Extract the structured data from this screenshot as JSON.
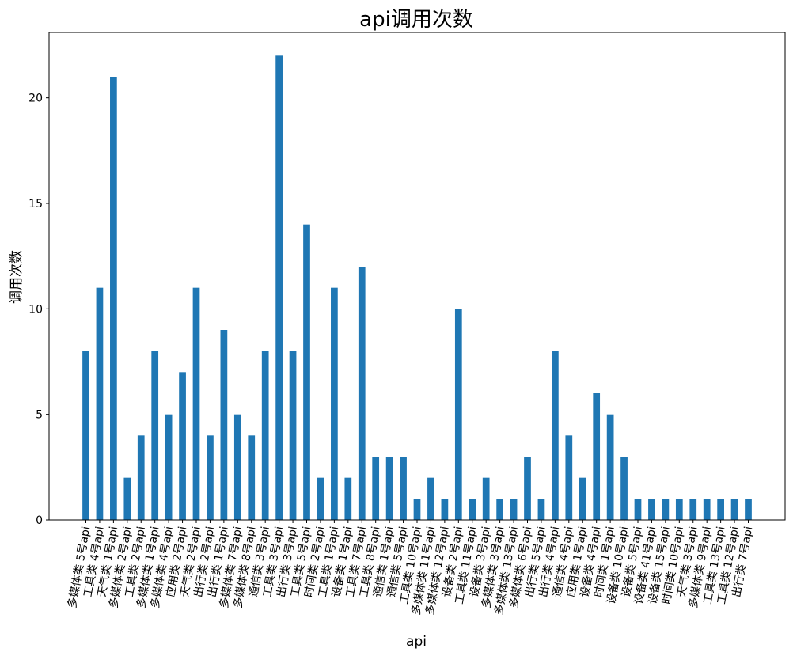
{
  "chart_data": {
    "type": "bar",
    "title": "api调用次数",
    "xlabel": "api",
    "ylabel": "调用次数",
    "ylim": [
      0,
      23.1
    ],
    "yticks": [
      0,
      5,
      10,
      15,
      20
    ],
    "grid": false,
    "bar_color": "#1f77b4",
    "categories": [
      "多媒体类 5号api",
      "工具类 4号api",
      "天气类 1号api",
      "多媒体类 2号api",
      "工具类 2号api",
      "多媒体类 1号api",
      "多媒体类 4号api",
      "应用类 2号api",
      "天气类 2号api",
      "出行类 2号api",
      "出行类 1号api",
      "多媒体类 7号api",
      "多媒体类 8号api",
      "通信类 3号api",
      "工具类 3号api",
      "出行类 3号api",
      "工具类 5号api",
      "时间类 2号api",
      "工具类 1号api",
      "设备类 1号api",
      "工具类 7号api",
      "工具类 8号api",
      "通信类 1号api",
      "通信类 5号api",
      "工具类 10号api",
      "多媒体类 11号api",
      "多媒体类 12号api",
      "设备类 2号api",
      "工具类 11号api",
      "设备类 3号api",
      "多媒体类 3号api",
      "多媒体类 13号api",
      "多媒体类 6号api",
      "出行类 5号api",
      "出行类 4号api",
      "通信类 4号api",
      "应用类 1号api",
      "设备类 4号api",
      "时间类 1号api",
      "设备类 10号api",
      "设备类 5号api",
      "设备类 41号api",
      "设备类 15号api",
      "时间类 10号api",
      "天气类 3号api",
      "多媒体类 9号api",
      "工具类 13号api",
      "工具类 12号api",
      "出行类 7号api"
    ],
    "values": [
      8,
      11,
      21,
      2,
      4,
      8,
      5,
      7,
      11,
      4,
      9,
      5,
      4,
      8,
      22,
      8,
      14,
      2,
      11,
      2,
      12,
      3,
      3,
      3,
      1,
      2,
      1,
      10,
      1,
      2,
      1,
      1,
      3,
      1,
      8,
      4,
      2,
      6,
      5,
      3,
      1,
      1,
      1,
      1,
      1,
      1,
      1,
      1,
      1
    ]
  }
}
